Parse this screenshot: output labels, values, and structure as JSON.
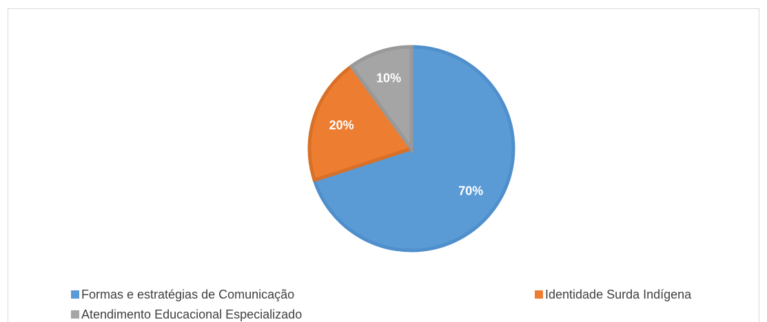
{
  "chart_data": {
    "type": "pie",
    "categories": [
      "Formas e estratégias de Comunicação",
      "Identidade Surda Indígena",
      "Atendimento Educacional Especializado"
    ],
    "values": [
      70,
      20,
      10
    ],
    "value_labels": [
      "70%",
      "20%",
      "10%"
    ],
    "colors": [
      "#5b9bd5",
      "#ed7d31",
      "#a5a5a5"
    ],
    "border_colors": [
      "#4f8fcb",
      "#d97028",
      "#999999"
    ],
    "legend": "bottom"
  }
}
